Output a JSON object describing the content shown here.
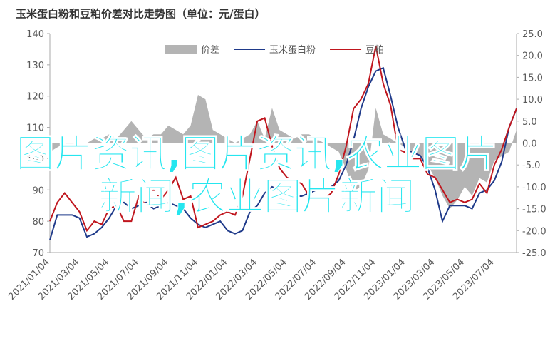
{
  "chart_data": {
    "type": "line",
    "title": "玉米蛋白粉和豆粕价差对比走势图（单位：元/蛋白）",
    "overlay_text": "图片资讯,图片资讯,农业图片新闻,农业图片新闻",
    "categories": [
      "2021/01/04",
      null,
      null,
      null,
      "2021/03/04",
      null,
      null,
      null,
      "2021/05/04",
      null,
      null,
      null,
      "2021/07/04",
      null,
      null,
      null,
      "2021/09/04",
      null,
      null,
      null,
      "2021/11/04",
      null,
      null,
      null,
      "2022/01/04",
      null,
      null,
      null,
      "2022/03/04",
      null,
      null,
      null,
      "2022/05/04",
      null,
      null,
      null,
      "2022/07/04",
      null,
      null,
      null,
      "2022/09/04",
      null,
      null,
      null,
      "2022/11/04",
      null,
      null,
      null,
      "2023/01/04",
      null,
      null,
      null,
      "2023/03/04",
      null,
      null,
      null,
      "2023/05/04",
      null,
      null,
      null,
      "2023/07/04",
      null,
      null,
      null
    ],
    "series": [
      {
        "name": "价差",
        "color": "#b4b4b4",
        "axis": "y2",
        "style": "area",
        "values": [
          -2,
          -1,
          0,
          -1,
          0,
          0,
          1,
          1,
          2,
          1,
          3,
          5,
          3,
          1,
          2,
          2,
          4,
          3,
          2,
          4,
          11,
          10,
          3,
          2,
          1,
          0,
          1,
          2,
          5,
          1,
          8,
          3,
          2,
          1,
          2,
          2,
          1,
          0,
          -1,
          -2,
          -6,
          -11,
          -10,
          -6,
          8,
          2,
          1,
          0,
          -1,
          -2,
          -3,
          -5,
          -8,
          -12,
          -15,
          -13,
          -10,
          -12,
          -8,
          -9,
          -4,
          -3,
          -2,
          3
        ]
      },
      {
        "name": "玉米蛋白粉",
        "color": "#1f3a8a",
        "style": "line",
        "values": [
          74,
          82,
          82,
          82,
          81,
          75,
          76,
          78,
          81,
          85,
          86,
          84,
          85,
          86,
          84,
          85,
          86,
          85,
          84,
          81,
          79,
          78,
          79,
          80,
          77,
          76,
          77,
          83,
          85,
          89,
          91,
          90,
          88,
          88,
          88,
          89,
          90,
          90,
          91,
          93,
          98,
          106,
          116,
          123,
          128,
          129,
          120,
          110,
          103,
          102,
          101,
          97,
          90,
          80,
          85,
          85,
          85,
          84,
          89,
          90,
          93,
          99,
          110,
          116
        ]
      },
      {
        "name": "豆粕",
        "color": "#c0161e",
        "style": "line",
        "values": [
          80,
          86,
          89,
          86,
          83,
          77,
          80,
          79,
          84,
          85,
          80,
          80,
          88,
          85,
          90,
          87,
          90,
          94,
          87,
          88,
          78,
          79,
          80,
          82,
          83,
          82,
          88,
          100,
          112,
          113,
          104,
          97,
          94,
          93,
          92,
          88,
          87,
          87,
          89,
          95,
          104,
          116,
          119,
          124,
          136,
          124,
          117,
          103,
          102,
          100,
          100,
          95,
          94,
          90,
          86,
          87,
          86,
          87,
          92,
          89,
          98,
          103,
          110,
          116
        ]
      }
    ],
    "ylim": [
      70,
      140
    ],
    "yticks": [
      70,
      80,
      90,
      100,
      110,
      120,
      130,
      140
    ],
    "y2lim": [
      -25,
      25
    ],
    "y2ticks": [
      -25.0,
      -20.0,
      -15.0,
      -10.0,
      -5.0,
      0.0,
      5.0,
      10.0,
      15.0,
      20.0,
      25.0
    ],
    "grid": false
  }
}
